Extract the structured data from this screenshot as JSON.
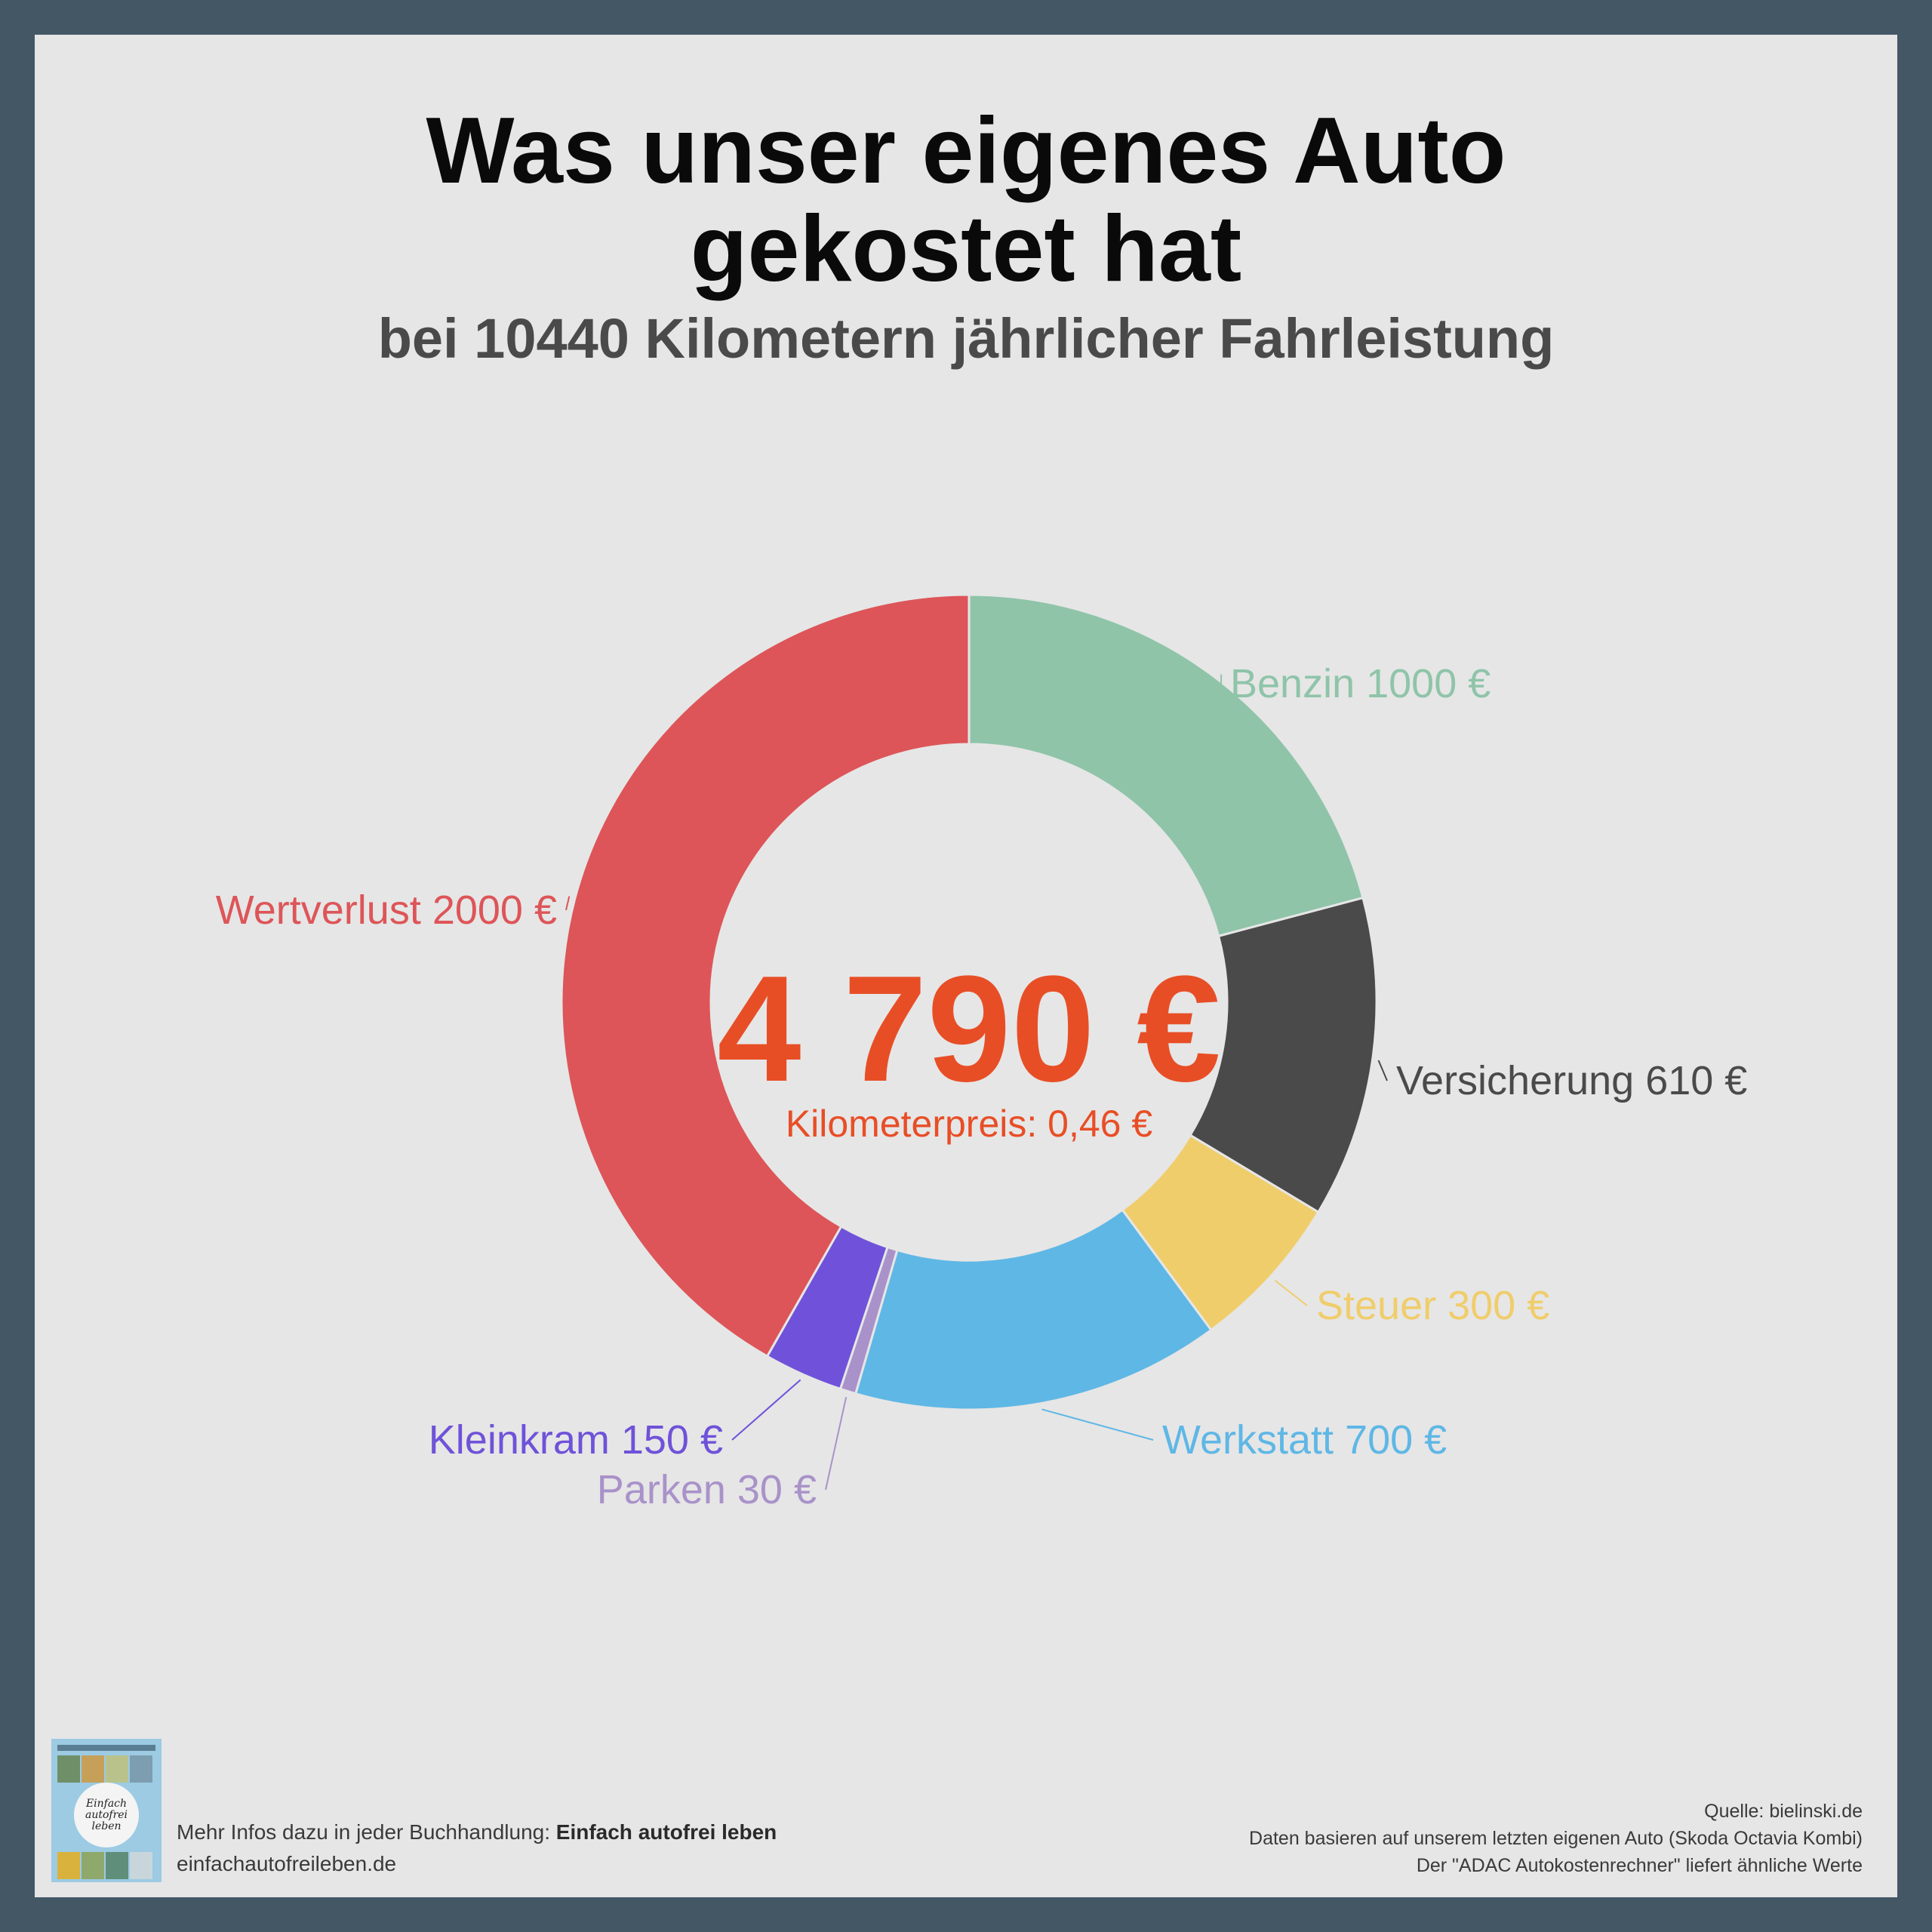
{
  "title_line1": "Was unser eigenes Auto",
  "title_line2": "gekostet hat",
  "subtitle": "bei 10440 Kilometern jährlicher Fahrleistung",
  "center": {
    "total": "4 790 €",
    "km_price": "Kilometerpreis: 0,46 €"
  },
  "chart_data": {
    "type": "pie",
    "donut": true,
    "title": "Was unser eigenes Auto gekostet hat",
    "subtitle": "bei 10440 Kilometern jährlicher Fahrleistung",
    "unit": "€",
    "slices": [
      {
        "name": "Benzin",
        "value": 1000,
        "label": "Benzin 1000 €",
        "color": "#8fc4a9"
      },
      {
        "name": "Versicherung",
        "value": 610,
        "label": "Versicherung 610 €",
        "color": "#4a4a4a"
      },
      {
        "name": "Steuer",
        "value": 300,
        "label": "Steuer 300 €",
        "color": "#f0cd6b"
      },
      {
        "name": "Werkstatt",
        "value": 700,
        "label": "Werkstatt 700 €",
        "color": "#5fb7e5"
      },
      {
        "name": "Parken",
        "value": 30,
        "label": "Parken 30 €",
        "color": "#a992c9"
      },
      {
        "name": "Kleinkram",
        "value": 150,
        "label": "Kleinkram 150 €",
        "color": "#6f52d9"
      },
      {
        "name": "Wertverlust",
        "value": 2000,
        "label": "Wertverlust 2000 €",
        "color": "#dd5558"
      }
    ],
    "total": 4790
  },
  "colors": {
    "total_accent": "#e84e26",
    "background_frame": "#435765",
    "panel": "#e6e6e6"
  },
  "footer": {
    "book_icon": "book-cover-image",
    "book_cover_text": "Einfach autofrei leben",
    "more_info_prefix": "Mehr Infos dazu in jeder Buchhandlung: ",
    "book_title": "Einfach autofrei leben",
    "website": "einfachautofreileben.de",
    "source": "Quelle: bielinski.de",
    "note1": "Daten basieren auf unserem letzten eigenen Auto (Skoda Octavia Kombi)",
    "note2": "Der \"ADAC Autokostenrechner\" liefert ähnliche Werte"
  }
}
